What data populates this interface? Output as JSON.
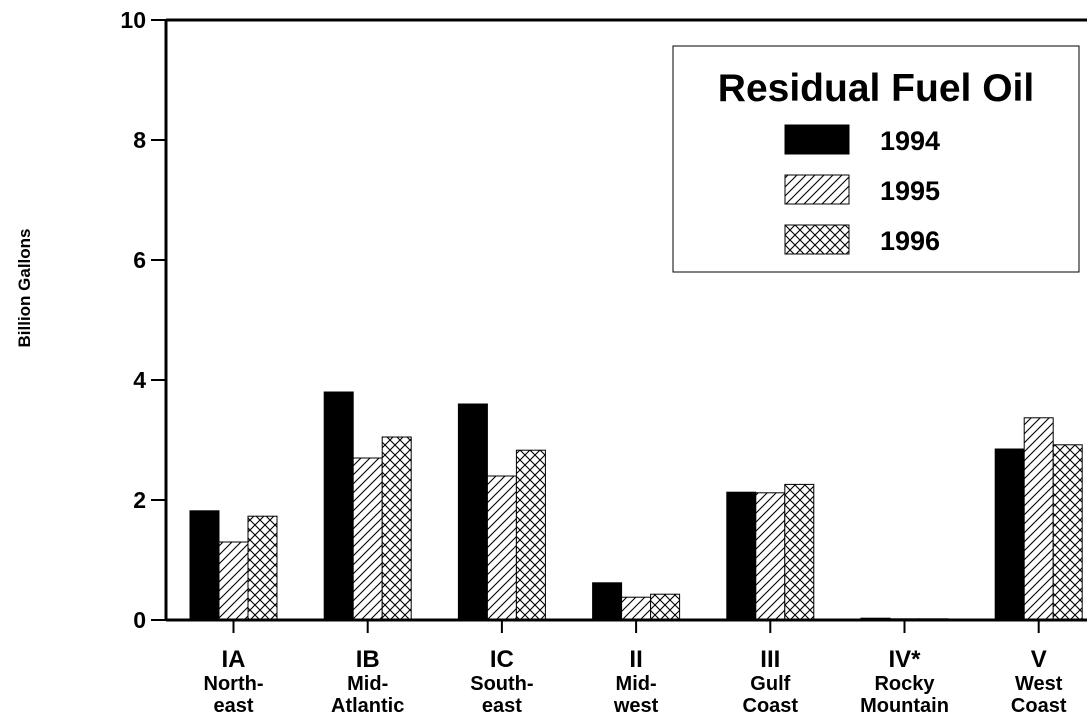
{
  "chart_data": {
    "type": "bar",
    "title": "",
    "ylabel": "Billion Gallons",
    "xlabel": "",
    "ylim": [
      0,
      10
    ],
    "yticks": [
      "0",
      "2",
      "4",
      "6",
      "8",
      "10"
    ],
    "grid": false,
    "legend": {
      "title": "Residual Fuel Oil",
      "placement": "top-right"
    },
    "categories": [
      {
        "code": "IA",
        "name": [
          "North-",
          "east"
        ]
      },
      {
        "code": "IB",
        "name": [
          "Mid-",
          "Atlantic"
        ]
      },
      {
        "code": "IC",
        "name": [
          "South-",
          "east"
        ]
      },
      {
        "code": "II",
        "name": [
          "Mid-",
          "west"
        ]
      },
      {
        "code": "III",
        "name": [
          "Gulf",
          "Coast"
        ]
      },
      {
        "code": "IV*",
        "name": [
          "Rocky",
          "Mountain"
        ]
      },
      {
        "code": "V",
        "name": [
          "West",
          "Coast"
        ]
      }
    ],
    "series": [
      {
        "name": "1994",
        "pattern": "solid",
        "values": [
          1.82,
          3.8,
          3.6,
          0.62,
          2.13,
          0.03,
          2.85
        ]
      },
      {
        "name": "1995",
        "pattern": "diagonal-hatch",
        "values": [
          1.3,
          2.7,
          2.4,
          0.38,
          2.12,
          0.02,
          3.37
        ]
      },
      {
        "name": "1996",
        "pattern": "cross-hatch",
        "values": [
          1.73,
          3.05,
          2.83,
          0.43,
          2.26,
          0.02,
          2.92
        ]
      }
    ],
    "colors": {
      "bar_fill": "#000000",
      "bar_outline": "#000000",
      "background": "#ffffff"
    }
  }
}
